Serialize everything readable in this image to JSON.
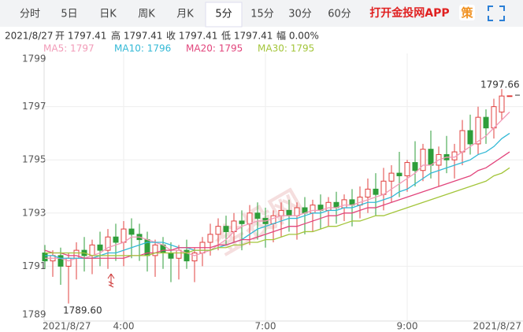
{
  "tabs": {
    "items": [
      "分时",
      "5日",
      "日K",
      "周K",
      "月K",
      "5分",
      "15分",
      "30分",
      "60分"
    ],
    "active": 5,
    "app_link": "打开金投网APP",
    "strategy_icon": "策"
  },
  "info": {
    "date": "2021/8/27",
    "fields": [
      "开 1797.41",
      "高 1797.41",
      "收 1797.41",
      "低 1797.41",
      "幅 0.00%"
    ]
  },
  "chart_data": {
    "type": "candlestick",
    "categories": [
      "2021/8/27",
      null,
      null,
      null,
      null,
      null,
      null,
      null,
      null,
      null,
      "4:00",
      null,
      null,
      null,
      null,
      null,
      null,
      null,
      null,
      null,
      null,
      null,
      null,
      null,
      null,
      null,
      null,
      null,
      "7:00",
      null,
      null,
      null,
      null,
      null,
      null,
      null,
      null,
      null,
      null,
      null,
      null,
      null,
      null,
      null,
      null,
      null,
      "9:00",
      null,
      null,
      null,
      null,
      null,
      null,
      null,
      null,
      null,
      null,
      null,
      null,
      "2021/8/27"
    ],
    "ohlc": [
      [
        1791.5,
        1791.8,
        1790.9,
        1791.2
      ],
      [
        1791.2,
        1791.6,
        1790.6,
        1791.4
      ],
      [
        1791.4,
        1791.7,
        1790.3,
        1791.0
      ],
      [
        1791.0,
        1791.5,
        1789.6,
        1791.3
      ],
      [
        1791.3,
        1791.9,
        1790.5,
        1791.6
      ],
      [
        1791.6,
        1792.1,
        1790.8,
        1791.4
      ],
      [
        1791.4,
        1792.0,
        1790.7,
        1791.8
      ],
      [
        1791.8,
        1792.3,
        1791.0,
        1791.6
      ],
      [
        1791.6,
        1792.4,
        1790.9,
        1792.1
      ],
      [
        1792.1,
        1792.6,
        1791.2,
        1791.9
      ],
      [
        1791.9,
        1792.7,
        1791.0,
        1792.4
      ],
      [
        1792.4,
        1792.8,
        1791.3,
        1792.2
      ],
      [
        1792.2,
        1792.6,
        1791.2,
        1792.0
      ],
      [
        1792.0,
        1792.3,
        1790.8,
        1791.4
      ],
      [
        1791.4,
        1792.0,
        1790.6,
        1791.8
      ],
      [
        1791.8,
        1792.1,
        1790.9,
        1791.5
      ],
      [
        1791.5,
        1791.9,
        1790.4,
        1791.3
      ],
      [
        1791.3,
        1791.8,
        1790.5,
        1791.6
      ],
      [
        1791.6,
        1792.0,
        1790.9,
        1791.2
      ],
      [
        1791.2,
        1791.7,
        1790.4,
        1791.5
      ],
      [
        1791.5,
        1792.1,
        1791.0,
        1791.9
      ],
      [
        1791.9,
        1792.6,
        1791.4,
        1792.2
      ],
      [
        1792.2,
        1792.8,
        1791.6,
        1792.5
      ],
      [
        1792.5,
        1792.9,
        1791.8,
        1792.3
      ],
      [
        1792.3,
        1793.0,
        1791.9,
        1792.7
      ],
      [
        1792.7,
        1793.1,
        1791.6,
        1792.6
      ],
      [
        1792.6,
        1793.3,
        1791.8,
        1793.0
      ],
      [
        1793.0,
        1793.4,
        1792.0,
        1792.8
      ],
      [
        1792.8,
        1793.2,
        1791.7,
        1792.6
      ],
      [
        1792.6,
        1793.1,
        1791.9,
        1792.9
      ],
      [
        1792.9,
        1793.4,
        1792.1,
        1793.1
      ],
      [
        1793.1,
        1793.5,
        1792.3,
        1792.9
      ],
      [
        1792.9,
        1793.4,
        1792.0,
        1793.2
      ],
      [
        1793.2,
        1793.6,
        1792.2,
        1793.0
      ],
      [
        1793.0,
        1793.5,
        1792.3,
        1793.3
      ],
      [
        1793.3,
        1793.7,
        1792.4,
        1793.1
      ],
      [
        1793.1,
        1793.6,
        1792.5,
        1793.4
      ],
      [
        1793.4,
        1793.8,
        1792.6,
        1793.2
      ],
      [
        1793.2,
        1793.7,
        1792.7,
        1793.5
      ],
      [
        1793.5,
        1793.9,
        1792.5,
        1793.3
      ],
      [
        1793.3,
        1794.0,
        1792.8,
        1793.6
      ],
      [
        1793.6,
        1794.3,
        1793.0,
        1793.9
      ],
      [
        1793.9,
        1794.5,
        1792.9,
        1793.7
      ],
      [
        1793.7,
        1794.7,
        1793.1,
        1794.2
      ],
      [
        1794.2,
        1794.8,
        1793.4,
        1794.5
      ],
      [
        1794.5,
        1795.3,
        1793.6,
        1794.4
      ],
      [
        1794.4,
        1795.0,
        1793.8,
        1794.9
      ],
      [
        1794.9,
        1795.7,
        1794.0,
        1794.6
      ],
      [
        1794.6,
        1795.6,
        1794.2,
        1795.4
      ],
      [
        1795.4,
        1796.1,
        1794.3,
        1794.8
      ],
      [
        1794.8,
        1795.5,
        1794.0,
        1795.2
      ],
      [
        1795.2,
        1795.9,
        1794.5,
        1795.0
      ],
      [
        1795.0,
        1795.6,
        1794.3,
        1795.3
      ],
      [
        1795.3,
        1796.5,
        1794.8,
        1796.1
      ],
      [
        1796.1,
        1796.7,
        1795.2,
        1795.6
      ],
      [
        1795.6,
        1797.0,
        1795.2,
        1796.6
      ],
      [
        1796.6,
        1796.9,
        1795.6,
        1796.2
      ],
      [
        1796.2,
        1797.3,
        1795.8,
        1797.0
      ],
      [
        1796.8,
        1797.66,
        1796.5,
        1797.4
      ],
      [
        1797.41,
        1797.41,
        1797.41,
        1797.41
      ]
    ],
    "up_color": "#e0403f",
    "down_color": "#2e9e3a",
    "series": [
      {
        "name": "MA5: 1797",
        "color": "#f29bb8",
        "values": [
          1791.3,
          1791.3,
          1791.3,
          1791.2,
          1791.3,
          1791.3,
          1791.4,
          1791.5,
          1791.7,
          1791.8,
          1791.9,
          1792.1,
          1792.1,
          1792.0,
          1791.9,
          1791.8,
          1791.6,
          1791.6,
          1791.5,
          1791.4,
          1791.5,
          1791.6,
          1791.8,
          1792.0,
          1792.3,
          1792.5,
          1792.6,
          1792.7,
          1792.7,
          1792.8,
          1792.9,
          1792.9,
          1792.9,
          1793.0,
          1793.1,
          1793.1,
          1793.2,
          1793.2,
          1793.3,
          1793.3,
          1793.4,
          1793.5,
          1793.6,
          1793.7,
          1793.9,
          1794.1,
          1794.3,
          1794.5,
          1794.8,
          1794.8,
          1795.0,
          1795.1,
          1795.1,
          1795.3,
          1795.5,
          1795.7,
          1795.9,
          1796.2,
          1796.5,
          1796.8
        ]
      },
      {
        "name": "MA10: 1796",
        "color": "#33b9d6",
        "values": [
          1791.4,
          1791.4,
          1791.3,
          1791.3,
          1791.3,
          1791.3,
          1791.3,
          1791.4,
          1791.5,
          1791.5,
          1791.6,
          1791.7,
          1791.8,
          1791.9,
          1791.9,
          1791.9,
          1791.8,
          1791.7,
          1791.7,
          1791.6,
          1791.6,
          1791.6,
          1791.7,
          1791.8,
          1791.9,
          1792.0,
          1792.2,
          1792.4,
          1792.5,
          1792.6,
          1792.7,
          1792.8,
          1792.8,
          1792.9,
          1793.0,
          1793.0,
          1793.1,
          1793.1,
          1793.2,
          1793.2,
          1793.3,
          1793.4,
          1793.4,
          1793.5,
          1793.6,
          1793.8,
          1793.9,
          1794.1,
          1794.3,
          1794.5,
          1794.6,
          1794.7,
          1794.8,
          1794.9,
          1795.0,
          1795.2,
          1795.3,
          1795.5,
          1795.8,
          1796.0
        ]
      },
      {
        "name": "MA20: 1795",
        "color": "#e2457c",
        "values": [
          1791.6,
          1791.5,
          1791.5,
          1791.4,
          1791.4,
          1791.3,
          1791.3,
          1791.3,
          1791.3,
          1791.3,
          1791.3,
          1791.4,
          1791.4,
          1791.5,
          1791.5,
          1791.6,
          1791.6,
          1791.7,
          1791.7,
          1791.7,
          1791.7,
          1791.7,
          1791.8,
          1791.8,
          1791.9,
          1792.0,
          1792.0,
          1792.1,
          1792.2,
          1792.3,
          1792.4,
          1792.5,
          1792.5,
          1792.6,
          1792.7,
          1792.8,
          1792.9,
          1792.9,
          1793.0,
          1793.0,
          1793.1,
          1793.2,
          1793.2,
          1793.3,
          1793.4,
          1793.5,
          1793.6,
          1793.7,
          1793.8,
          1793.9,
          1794.0,
          1794.1,
          1794.2,
          1794.3,
          1794.4,
          1794.6,
          1794.7,
          1794.9,
          1795.1,
          1795.3
        ]
      },
      {
        "name": "MA30: 1795",
        "color": "#a3c53a",
        "values": [
          1791.5,
          1791.5,
          1791.5,
          1791.5,
          1791.5,
          1791.5,
          1791.4,
          1791.4,
          1791.4,
          1791.4,
          1791.4,
          1791.4,
          1791.4,
          1791.4,
          1791.5,
          1791.5,
          1791.5,
          1791.5,
          1791.5,
          1791.6,
          1791.6,
          1791.6,
          1791.7,
          1791.7,
          1791.8,
          1791.8,
          1791.9,
          1791.9,
          1792.0,
          1792.0,
          1792.1,
          1792.2,
          1792.2,
          1792.3,
          1792.3,
          1792.4,
          1792.5,
          1792.5,
          1792.6,
          1792.7,
          1792.7,
          1792.8,
          1792.9,
          1792.9,
          1793.0,
          1793.1,
          1793.2,
          1793.3,
          1793.4,
          1793.5,
          1793.6,
          1793.7,
          1793.8,
          1793.9,
          1794.0,
          1794.1,
          1794.2,
          1794.4,
          1794.5,
          1794.7
        ]
      }
    ],
    "ylim": [
      1789,
      1799
    ],
    "yticks": [
      1789,
      1791,
      1793,
      1795,
      1797,
      1799
    ],
    "grid": true,
    "annotations": {
      "high": "1797.66",
      "low": "1789.60"
    },
    "watermark": "金投网"
  }
}
